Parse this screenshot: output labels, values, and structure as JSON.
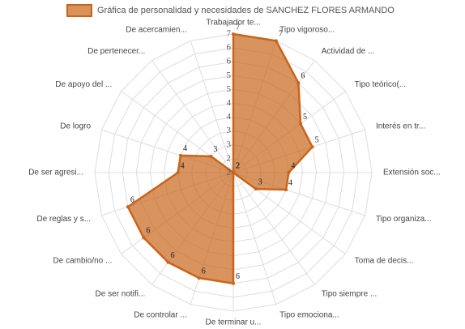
{
  "chart_data": {
    "type": "radar",
    "categories": [
      "Trabajador te...",
      "Tipo vigoroso...",
      "Actividad de ...",
      "Tipo teórico(...",
      "Interés en tr...",
      "Extensión soc...",
      "Tipo organiza...",
      "Toma de decis...",
      "Tipo siempre ...",
      "Tipo emociona...",
      "De terminar u...",
      "De controlar ...",
      "De ser notifi...",
      "De cambio/no ...",
      "De reglas y s...",
      "De ser agresi...",
      "De logro",
      "De apoyo del ...",
      "De pertenecer...",
      "De acercamien..."
    ],
    "series": [
      {
        "name": "Gráfica de personalidad y necesidades de SANCHEZ FLORES ARMANDO",
        "color": "#c8651b",
        "values": [
          7,
          7,
          6,
          5,
          5,
          4,
          4,
          3,
          2,
          2,
          6,
          6,
          6,
          6,
          6,
          4,
          4,
          3,
          2,
          2
        ]
      }
    ],
    "rlim": [
      2,
      7
    ],
    "rticks": [
      2,
      {
        "value": 2.5,
        "label": "2"
      },
      3,
      {
        "value": 3.5,
        "label": "3"
      },
      4,
      {
        "value": 4.5,
        "label": "4"
      },
      5,
      {
        "value": 5.5,
        "label": "5"
      },
      6,
      {
        "value": 6.5,
        "label": "6"
      },
      7
    ],
    "grid": true
  }
}
